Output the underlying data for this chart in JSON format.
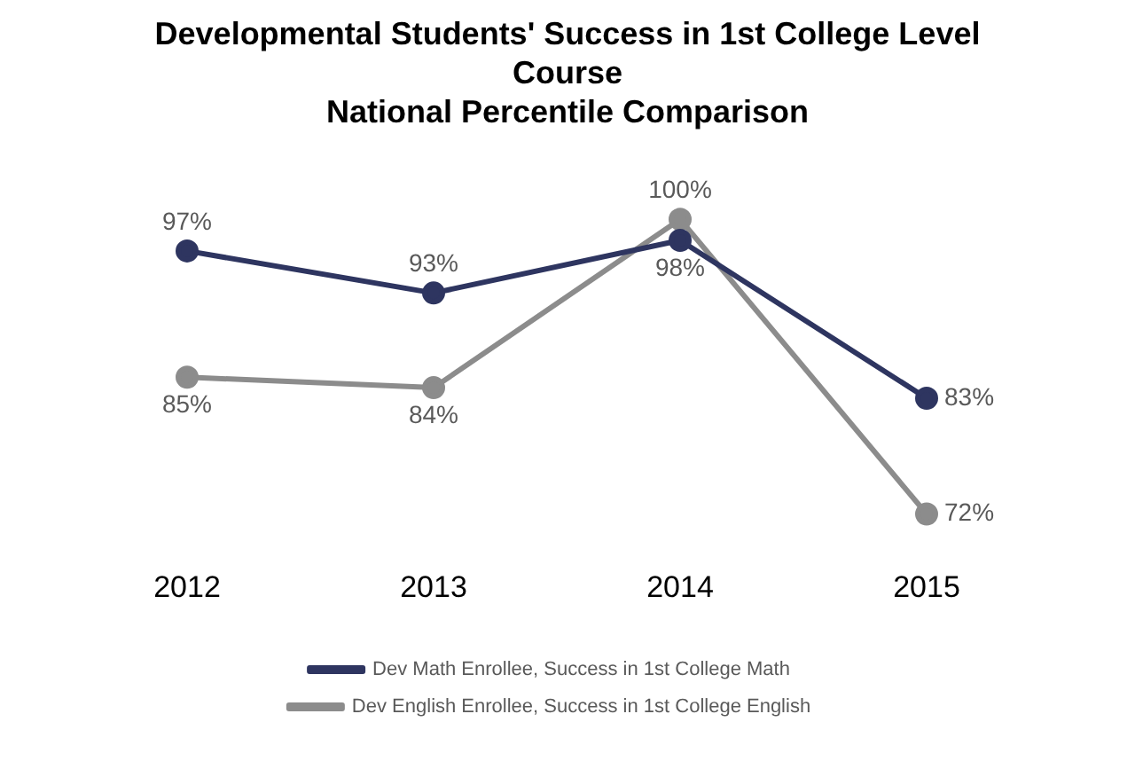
{
  "chart_data": {
    "type": "line",
    "title": "Developmental Students' Success in 1st College Level Course",
    "subtitle": "National Percentile Comparison",
    "categories": [
      "2012",
      "2013",
      "2014",
      "2015"
    ],
    "series": [
      {
        "name": "Dev Math Enrollee, Success in 1st College Math",
        "color": "#2e3560",
        "values": [
          97,
          93,
          98,
          83
        ],
        "value_labels": [
          "97%",
          "93%",
          "98%",
          "83%"
        ]
      },
      {
        "name": "Dev English Enrollee, Success in 1st College English",
        "color": "#8c8c8c",
        "values": [
          85,
          84,
          100,
          72
        ],
        "value_labels": [
          "85%",
          "84%",
          "100%",
          "72%"
        ]
      }
    ],
    "tick_labels": "x",
    "legend": "bottom",
    "marker": "circle",
    "line_style": "solid",
    "grid": false
  }
}
